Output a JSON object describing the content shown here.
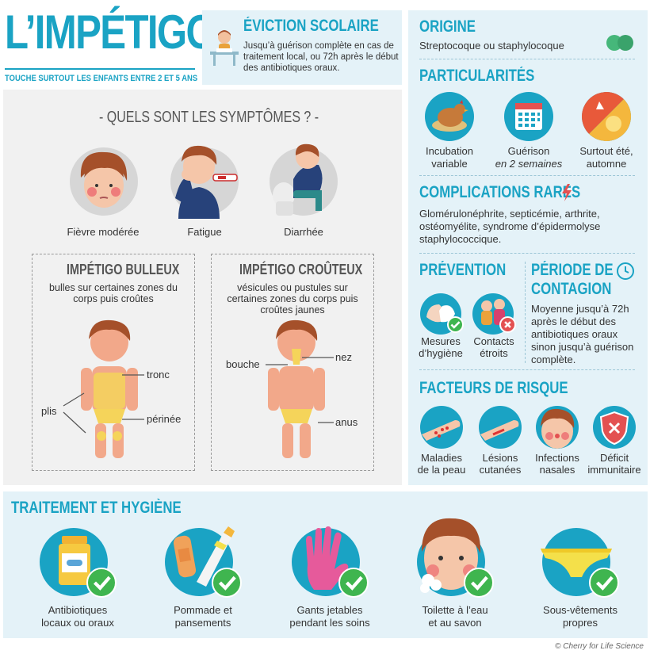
{
  "header": {
    "title": "L’IMPÉTIGO",
    "subtitle": "TOUCHE SURTOUT LES ENFANTS ENTRE 2 ET 5 ANS"
  },
  "eviction": {
    "title": "ÉVICTION SCOLAIRE",
    "text": "Jusqu’à guérison complète en cas de traitement local, ou 72h après le début des antibiotiques oraux."
  },
  "symptomes": {
    "title": "- QUELS SONT LES SYMPTÔMES ? -",
    "items": [
      {
        "label": "Fièvre modérée"
      },
      {
        "label": "Fatigue"
      },
      {
        "label": "Diarrhée"
      }
    ]
  },
  "bulleux": {
    "title": "IMPÉTIGO BULLEUX",
    "text": "bulles sur certaines zones du corps puis croûtes",
    "labels": {
      "tronc": "tronc",
      "plis": "plis",
      "perinee": "périnée"
    }
  },
  "crouteux": {
    "title": "IMPÉTIGO CROÛTEUX",
    "text": "vésicules ou pustules sur certaines zones du corps puis croûtes jaunes",
    "labels": {
      "bouche": "bouche",
      "nez": "nez",
      "anus": "anus"
    }
  },
  "origine": {
    "title": "ORIGINE",
    "text": "Streptocoque ou staphylocoque"
  },
  "particularites": {
    "title": "PARTICULARITÉS",
    "items": [
      {
        "line1": "Incubation",
        "line2": "variable",
        "icon": "hen-icon"
      },
      {
        "line1": "Guérison",
        "line2": "en 2 semaines",
        "icon": "calendar-icon"
      },
      {
        "line1": "Surtout été,",
        "line2": "automne",
        "icon": "sun-leaf-icon"
      }
    ]
  },
  "complications": {
    "title": "COMPLICATIONS RARES",
    "text": "Glomérulonéphrite, septicémie, arthrite, ostéomyélite, syndrome d’épidermolyse staphylococcique."
  },
  "prevention": {
    "title": "PRÉVENTION",
    "items": [
      {
        "line1": "Mesures",
        "line2": "d’hygiène"
      },
      {
        "line1": "Contacts",
        "line2": "étroits"
      }
    ]
  },
  "contagion": {
    "title_line1": "PÉRIODE DE",
    "title_line2": "CONTAGION",
    "text": "Moyenne jusqu’à 72h après le début des antibiotiques oraux sinon jusqu’à guérison complète."
  },
  "facteurs": {
    "title": "FACTEURS DE RISQUE",
    "items": [
      {
        "line1": "Maladies",
        "line2": "de la peau"
      },
      {
        "line1": "Lésions",
        "line2": "cutanées"
      },
      {
        "line1": "Infections",
        "line2": "nasales"
      },
      {
        "line1": "Déficit",
        "line2": "immunitaire"
      }
    ]
  },
  "traitement": {
    "title": "TRAITEMENT ET HYGIÈNE",
    "items": [
      {
        "line1": "Antibiotiques",
        "line2": "locaux ou oraux"
      },
      {
        "line1": "Pommade et",
        "line2": "pansements"
      },
      {
        "line1": "Gants jetables",
        "line2": "pendant les soins"
      },
      {
        "line1": "Toilette à l’eau",
        "line2": "et au savon"
      },
      {
        "line1": "Sous-vêtements",
        "line2": "propres"
      }
    ]
  },
  "credit": "© Cherry for Life Science",
  "colors": {
    "accent": "#1aa3c4",
    "panel": "#e4f2f8",
    "check": "#3fb54f"
  }
}
